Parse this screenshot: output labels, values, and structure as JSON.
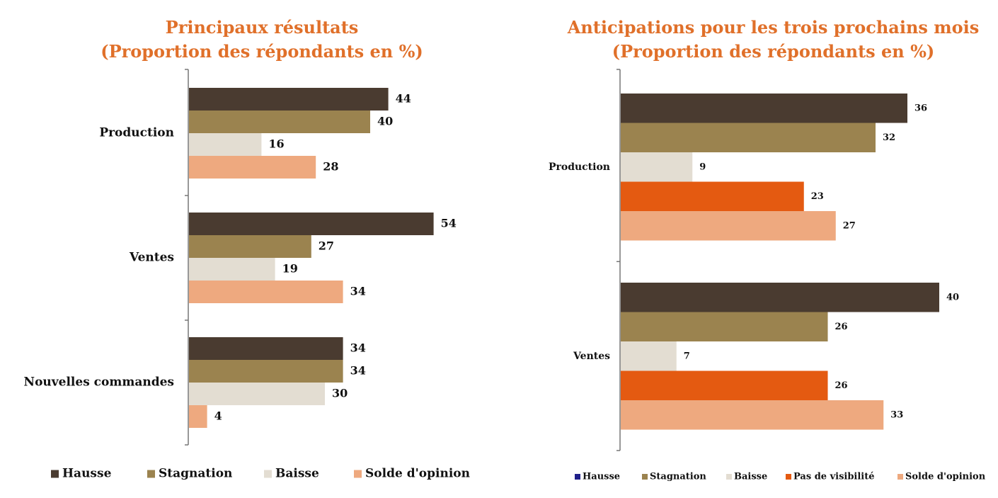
{
  "chart_data": [
    {
      "type": "bar",
      "orientation": "horizontal",
      "title_lines": [
        "Principaux résultats",
        "(Proportion des répondants en %)"
      ],
      "categories": [
        "Production",
        "Ventes",
        "Nouvelles commandes"
      ],
      "series": [
        {
          "name": "Hausse",
          "values": [
            44,
            54,
            34
          ],
          "color": "#4a3b30"
        },
        {
          "name": "Stagnation",
          "values": [
            40,
            27,
            34
          ],
          "color": "#9b834f"
        },
        {
          "name": "Baisse",
          "values": [
            16,
            19,
            30
          ],
          "color": "#e3ddd2"
        },
        {
          "name": "Solde d'opinion",
          "values": [
            28,
            34,
            4
          ],
          "color": "#eea97f"
        }
      ],
      "legend": [
        "Hausse",
        "Stagnation",
        "Baisse",
        "Solde d'opinion"
      ],
      "legend_position": "bottom",
      "grid": false
    },
    {
      "type": "bar",
      "orientation": "horizontal",
      "title_lines": [
        "Anticipations pour les trois prochains mois",
        "(Proportion des répondants en %)"
      ],
      "categories": [
        "Production",
        "Ventes"
      ],
      "series": [
        {
          "name": "Hausse",
          "values": [
            36,
            40
          ],
          "color": "#4a3b30",
          "legend_color": "#1f1f8a"
        },
        {
          "name": "Stagnation",
          "values": [
            32,
            26
          ],
          "color": "#9b834f"
        },
        {
          "name": "Baisse",
          "values": [
            9,
            7
          ],
          "color": "#e3ddd2"
        },
        {
          "name": "Pas de visibilité",
          "values": [
            23,
            26
          ],
          "color": "#e45a11"
        },
        {
          "name": "Solde d'opinion",
          "values": [
            27,
            33
          ],
          "color": "#eea97f"
        }
      ],
      "legend": [
        "Hausse",
        "Stagnation",
        "Baisse",
        "Pas de visibilité",
        "Solde d'opinion"
      ],
      "legend_position": "bottom",
      "grid": false
    }
  ]
}
